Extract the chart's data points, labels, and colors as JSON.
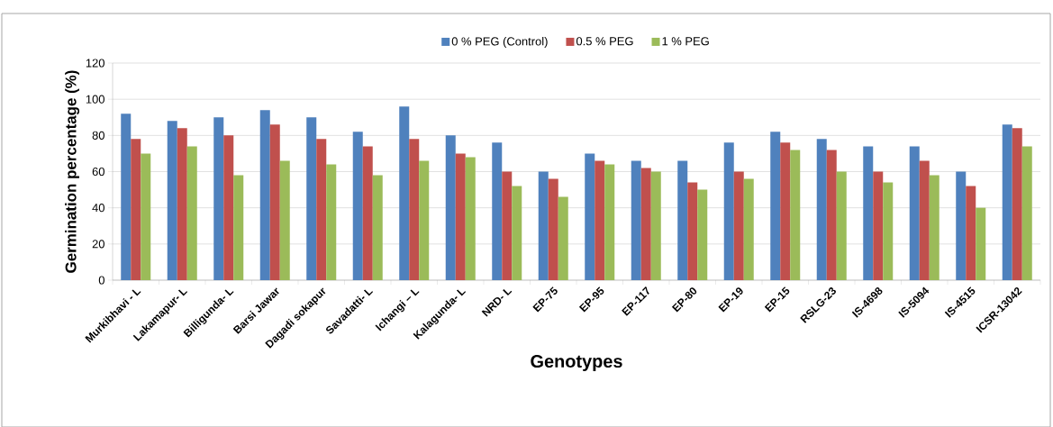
{
  "chart_data": {
    "type": "bar",
    "xlabel": "Genotypes",
    "ylabel": "Germination percentage (%)",
    "categories": [
      "Murkibhavi - L",
      "Lakamapur- L",
      "Billigunda- L",
      "Barsi Jawar",
      "Dagadi sokapur",
      "Savadatti- L",
      "Ichangi – L",
      "Kalagunda- L",
      "NRD- L",
      "EP-75",
      "EP-95",
      "EP-117",
      "EP-80",
      "EP-19",
      "EP-15",
      "RSLG-23",
      "IS-4698",
      "IS-5094",
      "IS-4515",
      "ICSR-13042"
    ],
    "series": [
      {
        "name": "0 % PEG (Control)",
        "color": "#4f81bd",
        "values": [
          92,
          88,
          90,
          94,
          90,
          82,
          96,
          80,
          76,
          60,
          70,
          66,
          66,
          76,
          82,
          78,
          74,
          74,
          60,
          86
        ]
      },
      {
        "name": "0.5 % PEG",
        "color": "#c0504d",
        "values": [
          78,
          84,
          80,
          86,
          78,
          74,
          78,
          70,
          60,
          56,
          66,
          62,
          54,
          60,
          76,
          72,
          60,
          66,
          52,
          84
        ]
      },
      {
        "name": "1 % PEG",
        "color": "#9bbb59",
        "values": [
          70,
          74,
          58,
          66,
          64,
          58,
          66,
          68,
          52,
          46,
          64,
          60,
          50,
          56,
          72,
          60,
          54,
          58,
          40,
          74
        ]
      }
    ],
    "ylim": [
      0,
      120
    ],
    "yticks": [
      0,
      20,
      40,
      60,
      80,
      100,
      120
    ],
    "grid": "y",
    "legend": "top"
  }
}
